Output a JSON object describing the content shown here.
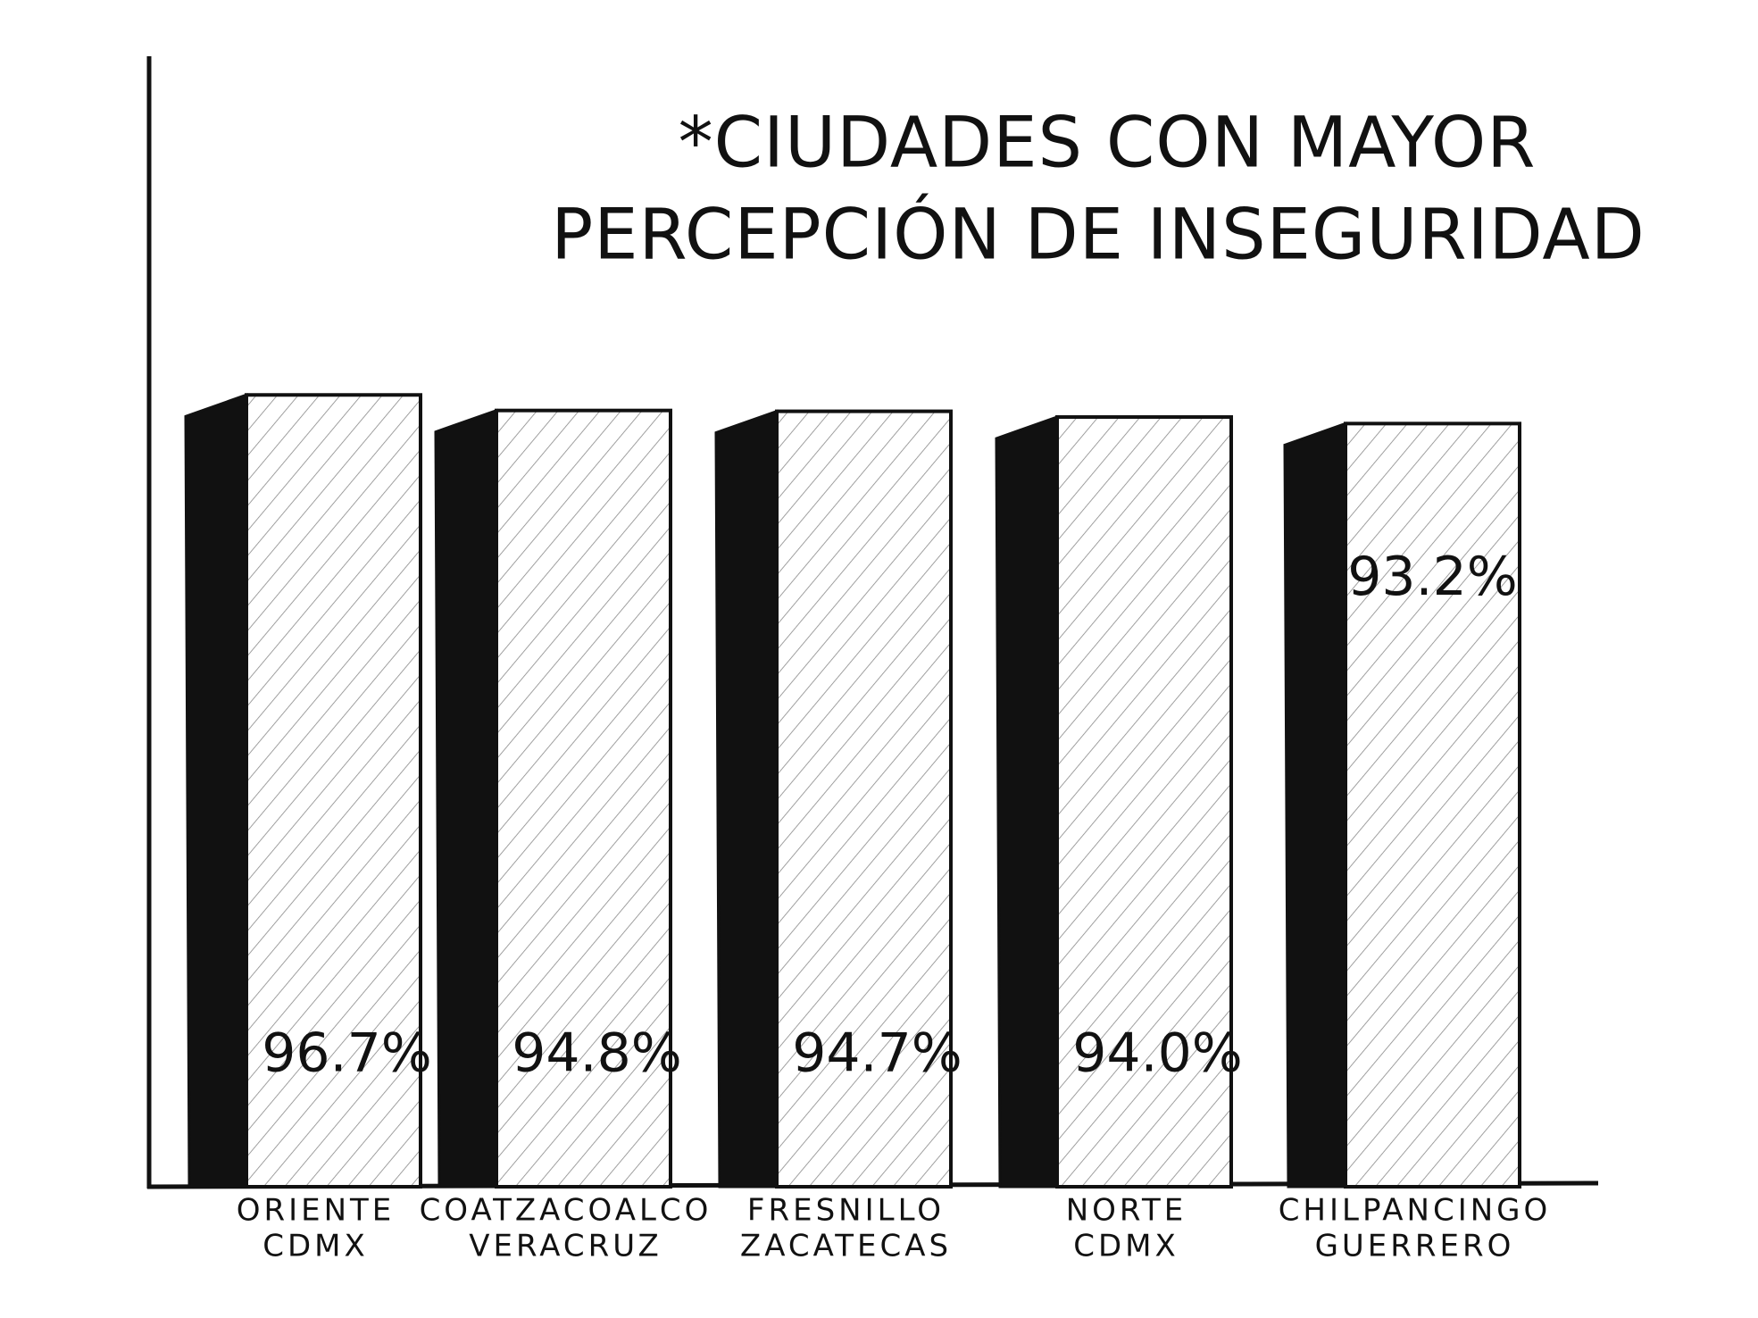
{
  "chart_data": {
    "type": "bar",
    "title": [
      "*CIUDADES CON MAYOR",
      "PERCEPCIÓN DE INSEGURIDAD"
    ],
    "categories": [
      [
        "ORIENTE",
        "CDMX"
      ],
      [
        "COATZACOALCO",
        "VERACRUZ"
      ],
      [
        "FRESNILLO",
        "ZACATECAS"
      ],
      [
        "NORTE",
        "CDMX"
      ],
      [
        "CHILPANCINGO",
        "GUERRERO"
      ]
    ],
    "values": [
      96.7,
      94.8,
      94.7,
      94.0,
      93.2
    ],
    "value_labels": [
      "96.7%",
      "94.8%",
      "94.7%",
      "94.0%",
      "93.2%"
    ],
    "color": "#111111",
    "ylim": [
      0,
      100
    ]
  }
}
